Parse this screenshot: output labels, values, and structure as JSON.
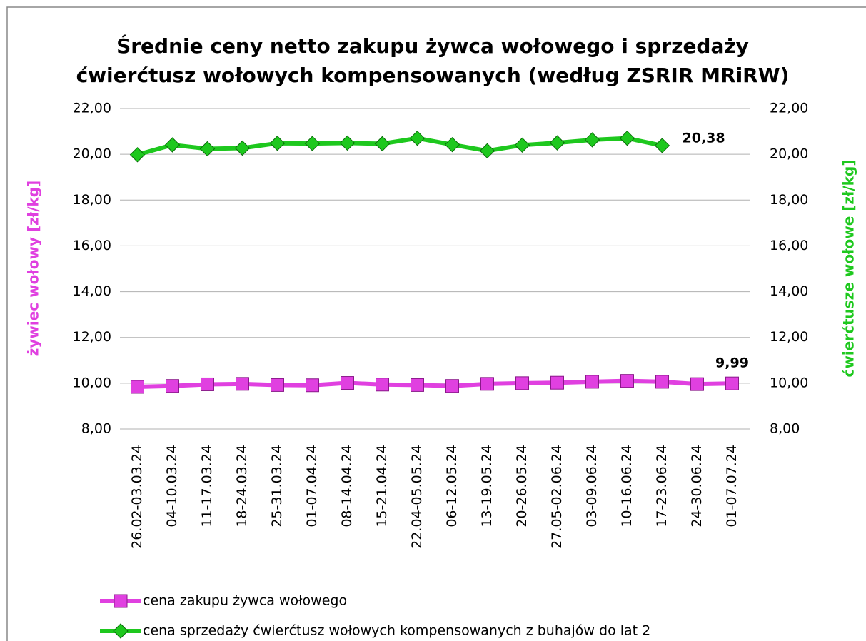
{
  "chart_data": {
    "type": "line",
    "title": [
      "Średnie ceny netto zakupu żywca wołowego i sprzedaży",
      "ćwierćtusz wołowych kompensowanych (według ZSRIR MRiRW)"
    ],
    "y_label": "żywiec wołowy [zł/kg]",
    "y2_label": "ćwierćtusze wołowe  [zł/kg]",
    "categories": [
      "26.02-03.03.24",
      "04-10.03.24",
      "11-17.03.24",
      "18-24.03.24",
      "25-31.03.24",
      "01-07.04.24",
      "08-14.04.24",
      "15-21.04.24",
      "22.04-05.05.24",
      "06-12.05.24",
      "13-19.05.24",
      "20-26.05.24",
      "27.05-02.06.24",
      "03-09.06.24",
      "10-16.06.24",
      "17-23.06.24",
      "24-30.06.24",
      "01-07.07.24"
    ],
    "series": [
      {
        "name": "cena zakupu żywca wołowego",
        "color": "#e040e0",
        "marker": "square",
        "values": [
          9.84,
          9.88,
          9.95,
          9.97,
          9.92,
          9.91,
          10.01,
          9.94,
          9.92,
          9.88,
          9.97,
          10.0,
          10.02,
          10.06,
          10.1,
          10.06,
          9.96,
          9.99
        ],
        "value_labels": [
          null,
          null,
          null,
          null,
          null,
          null,
          null,
          null,
          null,
          null,
          null,
          null,
          null,
          null,
          null,
          null,
          null,
          "9,99"
        ]
      },
      {
        "name": "cena sprzedaży ćwierćtusz wołowych kompensowanych z buhajów do lat 2",
        "color": "#1ec81e",
        "marker": "diamond",
        "axis": "y2",
        "values": [
          19.98,
          20.41,
          20.24,
          20.27,
          20.48,
          20.47,
          20.49,
          20.46,
          20.7,
          20.42,
          20.15,
          20.4,
          20.5,
          20.63,
          20.7,
          20.38,
          null,
          null
        ],
        "value_labels": [
          null,
          null,
          null,
          null,
          null,
          null,
          null,
          null,
          null,
          null,
          null,
          null,
          null,
          null,
          null,
          "20,38",
          null,
          null
        ]
      }
    ],
    "ylim": [
      8,
      22
    ],
    "yticks": [
      {
        "value": 8,
        "label": "8,00"
      },
      {
        "value": 10,
        "label": "10,00"
      },
      {
        "value": 12,
        "label": "12,00"
      },
      {
        "value": 14,
        "label": "14,00"
      },
      {
        "value": 16,
        "label": "16,00"
      },
      {
        "value": 18,
        "label": "18,00"
      },
      {
        "value": 20,
        "label": "20,00"
      },
      {
        "value": 22,
        "label": "22,00"
      }
    ],
    "y2lim": [
      8,
      22
    ],
    "y2ticks": [
      {
        "value": 8,
        "label": "8,00"
      },
      {
        "value": 10,
        "label": "10,00"
      },
      {
        "value": 12,
        "label": "12,00"
      },
      {
        "value": 14,
        "label": "14,00"
      },
      {
        "value": 16,
        "label": "16,00"
      },
      {
        "value": 18,
        "label": "18,00"
      },
      {
        "value": 20,
        "label": "20,00"
      },
      {
        "value": 22,
        "label": "22,00"
      }
    ],
    "grid": true,
    "legend": "bottom"
  }
}
